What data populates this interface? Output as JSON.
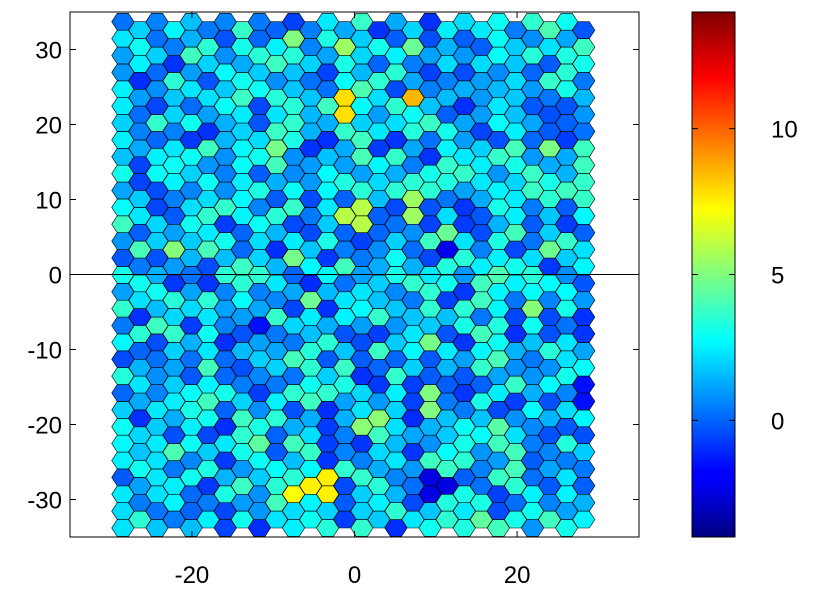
{
  "chart_data": {
    "type": "heatmap",
    "subtype": "hexbin",
    "title": "",
    "xlabel": "",
    "ylabel": "",
    "xlim": [
      -35,
      35
    ],
    "ylim": [
      -35,
      35
    ],
    "x_ticks": [
      -20,
      0,
      20
    ],
    "x_tick_labels": [
      "-20",
      "0",
      "20"
    ],
    "y_ticks": [
      -30,
      -20,
      -10,
      0,
      10,
      20,
      30
    ],
    "y_tick_labels": [
      "-30",
      "-20",
      "-10",
      "0",
      "10",
      "20",
      "30"
    ],
    "reference_line": {
      "orientation": "horizontal",
      "y": 0
    },
    "colorbar": {
      "colormap": "jet",
      "range": [
        -4,
        14
      ],
      "ticks": [
        0,
        5,
        10
      ],
      "tick_labels": [
        "0",
        "5",
        "10"
      ]
    },
    "hex_grid": {
      "x_range": [
        -31,
        29
      ],
      "y_range": [
        -33.8,
        33.8
      ],
      "value_range_typical": [
        -1,
        4
      ],
      "hot_cells": [
        {
          "x": 6.5,
          "y": 23,
          "value": 8.5
        },
        {
          "x": -1.5,
          "y": 22.5,
          "value": 7.8
        },
        {
          "x": -4.5,
          "y": -28,
          "value": 7.5
        },
        {
          "x": -7.5,
          "y": -29.5,
          "value": 7.2
        },
        {
          "x": 0,
          "y": 8,
          "value": 6
        },
        {
          "x": 8,
          "y": 9,
          "value": 5.5
        },
        {
          "x": 12,
          "y": 3,
          "value": -2
        },
        {
          "x": 10.5,
          "y": -28,
          "value": -2.2
        },
        {
          "x": -11,
          "y": -7,
          "value": -1.5
        },
        {
          "x": 29,
          "y": -16,
          "value": -1.5
        },
        {
          "x": -2,
          "y": 30,
          "value": 5.5
        },
        {
          "x": 2,
          "y": -20,
          "value": 5.2
        },
        {
          "x": 9,
          "y": -17,
          "value": 5
        },
        {
          "x": -8,
          "y": 32,
          "value": 5
        }
      ]
    }
  }
}
